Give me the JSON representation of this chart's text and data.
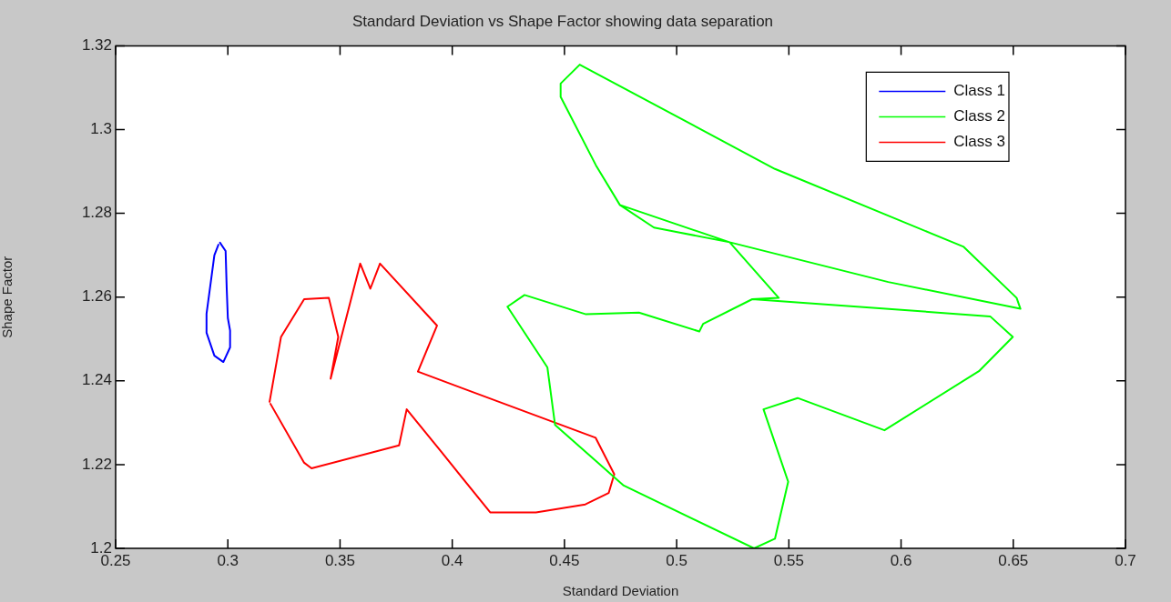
{
  "chart_data": {
    "type": "line",
    "title": "Standard Deviation vs Shape Factor showing data separation",
    "xlabel": "Standard Deviation",
    "ylabel": "Shape Factor",
    "xlim": [
      0.25,
      0.7
    ],
    "xticks": [
      0.25,
      0.3,
      0.35,
      0.4,
      0.45,
      0.5,
      0.55,
      0.6,
      0.65,
      0.7
    ],
    "ylim": [
      1.2,
      1.32
    ],
    "yticks": [
      1.2,
      1.22,
      1.24,
      1.26,
      1.28,
      1.3,
      1.32
    ],
    "grid": false,
    "legend": "top right",
    "marker": "none",
    "line_style": "solid",
    "series": [
      {
        "name": "Class 1",
        "color": "#0000ff",
        "x": [
          0.2965,
          0.299,
          0.2995,
          0.3,
          0.301,
          0.301,
          0.298,
          0.294,
          0.2905,
          0.2905,
          0.2925,
          0.294,
          0.2958
        ],
        "values": [
          1.273,
          1.271,
          1.262,
          1.255,
          1.252,
          1.248,
          1.2445,
          1.246,
          1.2515,
          1.256,
          1.264,
          1.27,
          1.2725
        ]
      },
      {
        "name": "Class 2",
        "color": "#00ff00",
        "x": [
          0.4747,
          0.464,
          0.4483,
          0.4483,
          0.4568,
          0.4663,
          0.5438,
          0.6279,
          0.6515,
          0.6532,
          0.5943,
          0.5236,
          0.4899,
          0.4747,
          0.5236,
          0.5455,
          0.5337,
          0.6397,
          0.6498,
          0.6347,
          0.5926,
          0.5539,
          0.5387,
          0.5497,
          0.5438,
          0.5345,
          0.4764,
          0.4458,
          0.4424,
          0.4246,
          0.4322,
          0.4596,
          0.4832,
          0.5101,
          0.5118,
          0.5337
        ],
        "values": [
          1.282,
          1.2915,
          1.3078,
          1.311,
          1.3155,
          1.3128,
          1.2906,
          1.272,
          1.2598,
          1.2572,
          1.2636,
          1.2731,
          1.2766,
          1.282,
          1.2731,
          1.2598,
          1.2595,
          1.2554,
          1.2505,
          1.2423,
          1.2282,
          1.2359,
          1.2332,
          1.2159,
          1.2023,
          1.2,
          1.215,
          1.2295,
          1.2432,
          1.2577,
          1.2605,
          1.2559,
          1.2563,
          1.2518,
          1.2536,
          1.2595
        ]
      },
      {
        "name": "Class 3",
        "color": "#ff0000",
        "x": [
          0.3186,
          0.3237,
          0.334,
          0.345,
          0.3492,
          0.3458,
          0.359,
          0.3635,
          0.3678,
          0.3932,
          0.3847,
          0.4639,
          0.4722,
          0.4697,
          0.4593,
          0.4373,
          0.4169,
          0.3949,
          0.3797,
          0.3763,
          0.3373,
          0.3339,
          0.319
        ],
        "values": [
          1.235,
          1.2505,
          1.2595,
          1.2598,
          1.2505,
          1.2405,
          1.268,
          1.262,
          1.268,
          1.2532,
          1.2422,
          1.2264,
          1.2177,
          1.2132,
          1.2105,
          1.2086,
          1.2086,
          1.2232,
          1.2332,
          1.2246,
          1.2191,
          1.2205,
          1.2345
        ]
      }
    ]
  }
}
